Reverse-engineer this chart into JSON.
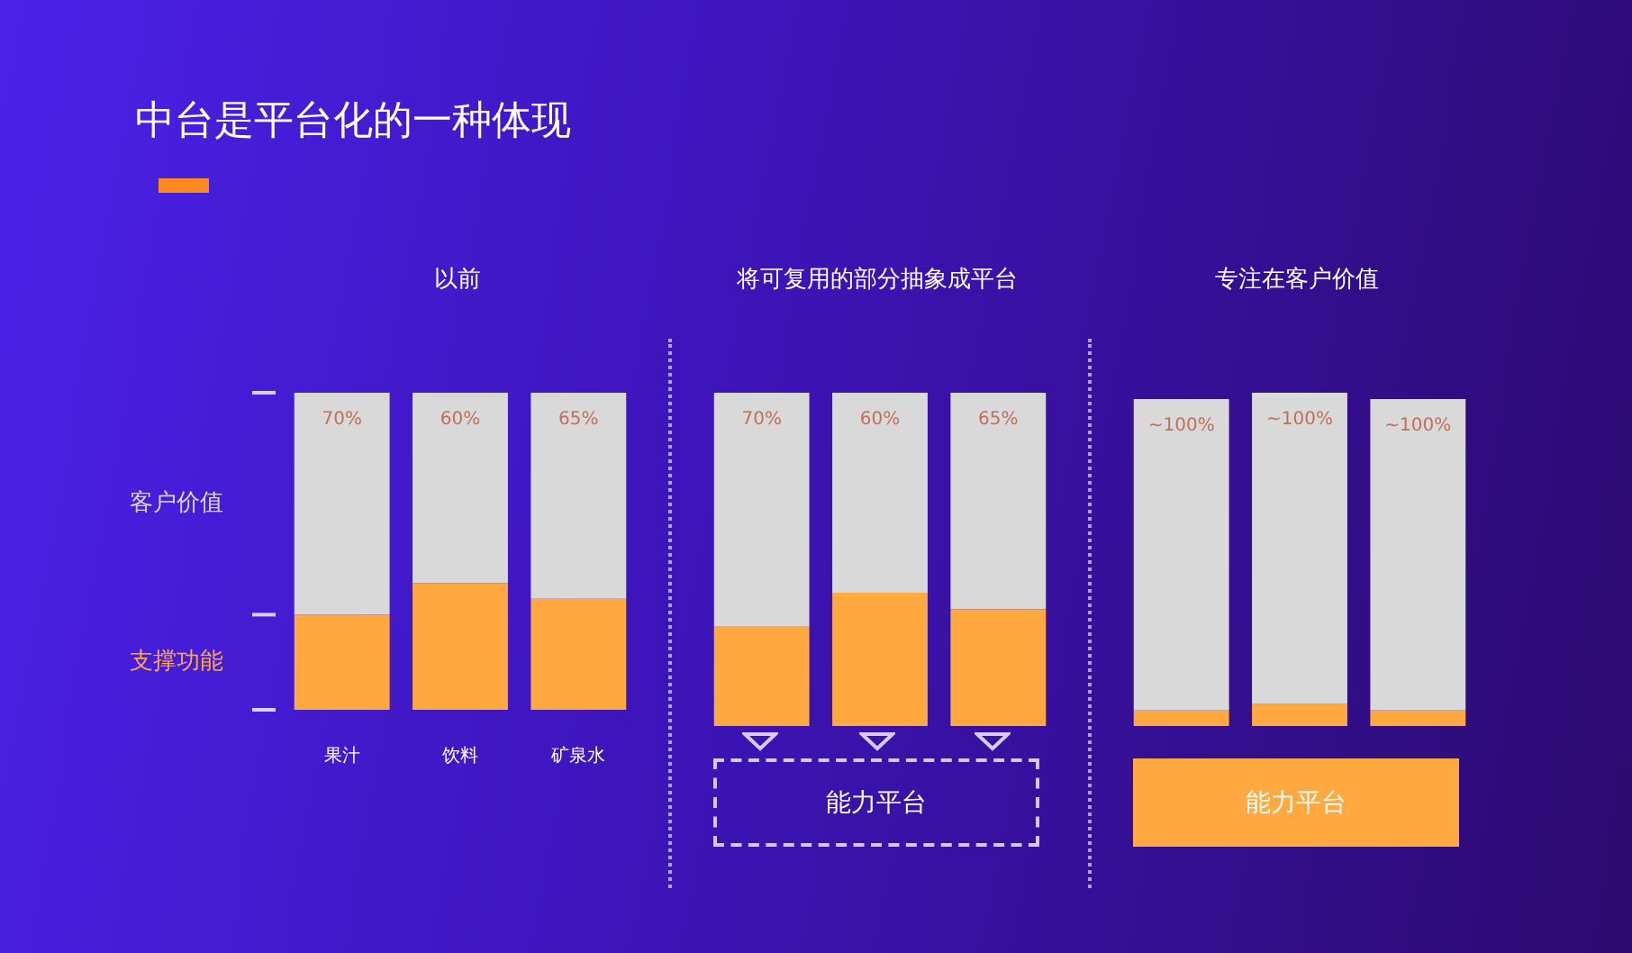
{
  "chart_data": [
    {
      "type": "bar",
      "title": "中台是平台化的一种体现",
      "subtitle": "以前",
      "categories": [
        "果汁",
        "饮料",
        "矿泉水"
      ],
      "stacked": true,
      "ylim": [
        0,
        100
      ],
      "yticks": [
        {
          "value": 0,
          "label": null
        },
        {
          "value": 30,
          "label": null
        },
        {
          "value": 100,
          "label": null
        }
      ],
      "tick_labels": "x",
      "series": [
        {
          "name": "支撑功能",
          "color": "#ffa940",
          "values": [
            30,
            40,
            35
          ]
        },
        {
          "name": "客户价值",
          "color": "#d9d9d9",
          "values": [
            70,
            60,
            65
          ],
          "value_labels": [
            "70%",
            "60%",
            "65%"
          ]
        }
      ]
    },
    {
      "type": "bar",
      "title": "将可复用的部分抽象成平台",
      "categories": [
        null,
        null,
        null
      ],
      "stacked": true,
      "ylim": [
        0,
        100
      ],
      "tick_labels": false,
      "annotations": [
        "能力平台"
      ],
      "series": [
        {
          "color": "#ffa940",
          "values": [
            30,
            40,
            35
          ]
        },
        {
          "color": "#d9d9d9",
          "values": [
            70,
            60,
            65
          ],
          "value_labels": [
            "70%",
            "60%",
            "65%"
          ]
        }
      ]
    },
    {
      "type": "bar",
      "title": "专注在客户价值",
      "categories": [
        null,
        null,
        null
      ],
      "stacked": true,
      "ylim": [
        0,
        107
      ],
      "tick_labels": false,
      "annotations": [
        "能力平台"
      ],
      "series": [
        {
          "color": "#ffa940",
          "values": [
            5,
            7,
            5
          ]
        },
        {
          "color": "#d9d9d9",
          "values": [
            100,
            100,
            100
          ],
          "value_labels": [
            "~100%",
            "~100%",
            "~100%"
          ]
        }
      ]
    }
  ]
}
